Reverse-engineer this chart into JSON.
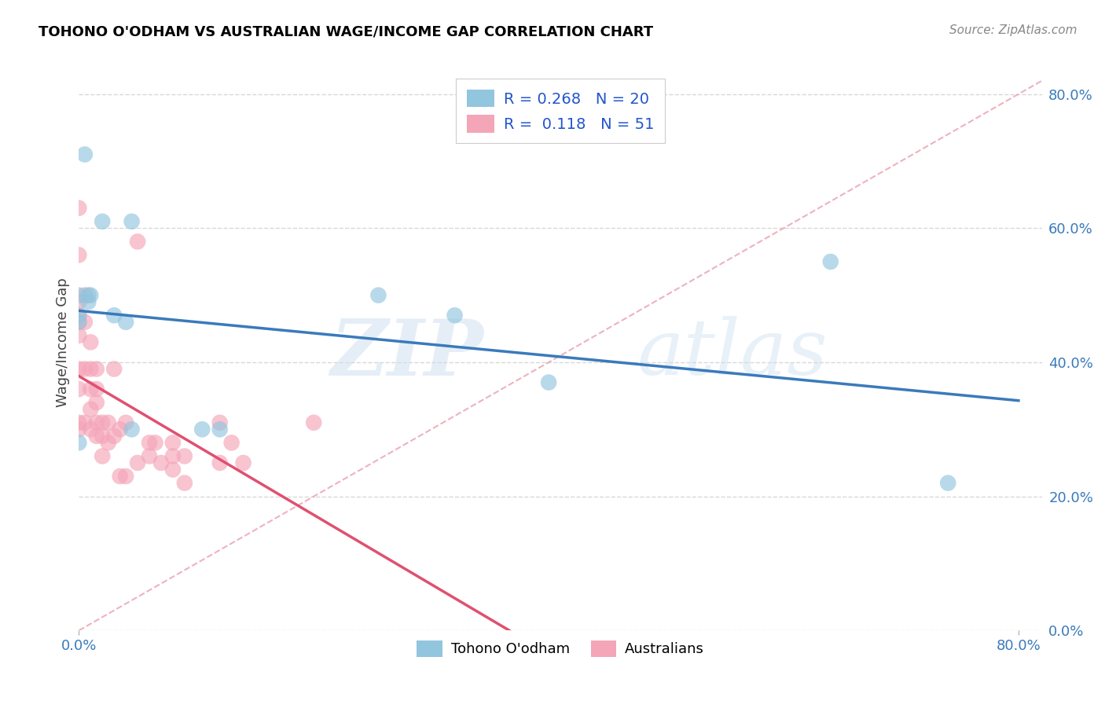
{
  "title": "TOHONO O'ODHAM VS AUSTRALIAN WAGE/INCOME GAP CORRELATION CHART",
  "source": "Source: ZipAtlas.com",
  "ylabel": "Wage/Income Gap",
  "blue_color": "#92c5de",
  "pink_color": "#f4a5b8",
  "blue_line_color": "#3a7abb",
  "pink_line_color": "#e05070",
  "diag_color": "#e8a0b0",
  "blue_scatter_x": [
    0.005,
    0.02,
    0.0,
    0.0,
    0.0,
    0.008,
    0.008,
    0.01,
    0.0,
    0.03,
    0.04,
    0.045,
    0.045,
    0.105,
    0.12,
    0.255,
    0.32,
    0.64,
    0.74,
    0.4
  ],
  "blue_scatter_y": [
    0.71,
    0.61,
    0.5,
    0.47,
    0.46,
    0.5,
    0.49,
    0.5,
    0.28,
    0.47,
    0.46,
    0.61,
    0.3,
    0.3,
    0.3,
    0.5,
    0.47,
    0.55,
    0.22,
    0.37
  ],
  "pink_scatter_x": [
    0.0,
    0.0,
    0.0,
    0.0,
    0.0,
    0.0,
    0.0,
    0.0,
    0.0,
    0.0,
    0.005,
    0.005,
    0.005,
    0.005,
    0.01,
    0.01,
    0.01,
    0.01,
    0.01,
    0.015,
    0.015,
    0.015,
    0.015,
    0.02,
    0.02,
    0.02,
    0.025,
    0.025,
    0.03,
    0.03,
    0.035,
    0.035,
    0.04,
    0.04,
    0.05,
    0.05,
    0.06,
    0.06,
    0.065,
    0.07,
    0.08,
    0.08,
    0.08,
    0.09,
    0.09,
    0.12,
    0.12,
    0.13,
    0.14,
    0.2,
    0.015
  ],
  "pink_scatter_y": [
    0.63,
    0.56,
    0.49,
    0.47,
    0.46,
    0.44,
    0.39,
    0.36,
    0.31,
    0.3,
    0.5,
    0.46,
    0.39,
    0.31,
    0.43,
    0.39,
    0.36,
    0.33,
    0.3,
    0.36,
    0.34,
    0.31,
    0.29,
    0.31,
    0.29,
    0.26,
    0.31,
    0.28,
    0.39,
    0.29,
    0.3,
    0.23,
    0.31,
    0.23,
    0.58,
    0.25,
    0.28,
    0.26,
    0.28,
    0.25,
    0.28,
    0.26,
    0.24,
    0.26,
    0.22,
    0.31,
    0.25,
    0.28,
    0.25,
    0.31,
    0.39
  ],
  "watermark_zip": "ZIP",
  "watermark_atlas": "atlas",
  "background_color": "#ffffff",
  "grid_color": "#d8d8d8",
  "xlim": [
    0.0,
    0.82
  ],
  "ylim": [
    0.0,
    0.86
  ],
  "yticks": [
    0.0,
    0.2,
    0.4,
    0.6,
    0.8
  ],
  "ytick_labels": [
    "0.0%",
    "20.0%",
    "40.0%",
    "60.0%",
    "80.0%"
  ],
  "xtick_labels": [
    "0.0%",
    "80.0%"
  ],
  "xtick_positions": [
    0.0,
    0.8
  ]
}
